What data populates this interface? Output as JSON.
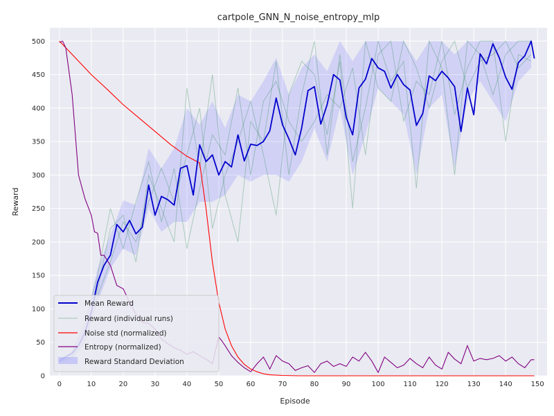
{
  "chart_data": {
    "type": "line",
    "title": "cartpole_GNN_N_noise_entropy_mlp",
    "xlabel": "Episode",
    "ylabel": "Reward",
    "xlim": [
      -3,
      153
    ],
    "ylim": [
      0,
      520
    ],
    "xticks": [
      0,
      10,
      20,
      30,
      40,
      50,
      60,
      70,
      80,
      90,
      100,
      110,
      120,
      130,
      140,
      150
    ],
    "yticks": [
      0,
      50,
      100,
      150,
      200,
      250,
      300,
      350,
      400,
      450,
      500
    ],
    "grid": true,
    "legend_position": "lower-left",
    "colors": {
      "mean": "#0000cc",
      "runs": "#2e8b57",
      "noise": "#ff0000",
      "entropy": "#800080",
      "std_band": "#7b7bff",
      "plot_bg": "#eaeaf2",
      "grid": "#ffffff"
    },
    "series": [
      {
        "name": "Mean Reward",
        "x": [
          0,
          2,
          4,
          6,
          8,
          10,
          12,
          14,
          16,
          18,
          20,
          22,
          24,
          26,
          28,
          30,
          32,
          34,
          36,
          38,
          40,
          42,
          44,
          46,
          48,
          50,
          52,
          54,
          56,
          58,
          60,
          62,
          64,
          66,
          68,
          70,
          72,
          74,
          76,
          78,
          80,
          82,
          84,
          86,
          88,
          90,
          92,
          94,
          96,
          98,
          100,
          102,
          104,
          106,
          108,
          110,
          112,
          114,
          116,
          118,
          120,
          122,
          124,
          126,
          128,
          130,
          132,
          134,
          136,
          138,
          140,
          142,
          144,
          146,
          148,
          149
        ],
        "values": [
          22,
          28,
          34,
          45,
          65,
          95,
          140,
          165,
          180,
          226,
          215,
          232,
          212,
          222,
          285,
          240,
          268,
          263,
          255,
          310,
          314,
          270,
          345,
          320,
          330,
          300,
          320,
          312,
          360,
          321,
          346,
          344,
          350,
          366,
          415,
          375,
          354,
          330,
          370,
          426,
          432,
          376,
          405,
          450,
          442,
          386,
          360,
          430,
          443,
          474,
          460,
          455,
          430,
          450,
          435,
          427,
          374,
          392,
          448,
          441,
          455,
          445,
          432,
          365,
          430,
          390,
          481,
          466,
          496,
          475,
          446,
          428,
          468,
          478,
          500,
          474
        ]
      },
      {
        "name": "Reward (individual runs)",
        "runs": [
          {
            "x": [
              0,
              4,
              8,
              12,
              16,
              20,
              24,
              28,
              32,
              36,
              40,
              44,
              48,
              52,
              56,
              60,
              64,
              68,
              72,
              76,
              80,
              84,
              88,
              92,
              96,
              100,
              104,
              108,
              112,
              116,
              120,
              124,
              128,
              132,
              136,
              140,
              144,
              148
            ],
            "values": [
              20,
              30,
              60,
              130,
              220,
              240,
              170,
              300,
              250,
              200,
              430,
              310,
              450,
              270,
              200,
              380,
              350,
              470,
              300,
              420,
              500,
              330,
              480,
              320,
              400,
              500,
              440,
              470,
              280,
              500,
              460,
              300,
              500,
              480,
              420,
              480,
              500,
              500
            ]
          },
          {
            "x": [
              0,
              4,
              8,
              12,
              16,
              20,
              24,
              28,
              32,
              36,
              40,
              44,
              48,
              52,
              56,
              60,
              64,
              68,
              72,
              76,
              80,
              84,
              88,
              92,
              96,
              100,
              104,
              108,
              112,
              116,
              120,
              124,
              128,
              132,
              136,
              140,
              144,
              148
            ],
            "values": [
              25,
              35,
              80,
              150,
              250,
              190,
              260,
              320,
              230,
              310,
              190,
              280,
              360,
              330,
              430,
              300,
              410,
              440,
              380,
              350,
              380,
              420,
              400,
              460,
              330,
              480,
              500,
              380,
              440,
              420,
              500,
              390,
              460,
              500,
              500,
              350,
              480,
              470
            ]
          },
          {
            "x": [
              0,
              4,
              8,
              12,
              16,
              20,
              24,
              28,
              32,
              36,
              40,
              44,
              48,
              52,
              56,
              60,
              64,
              68,
              72,
              76,
              80,
              84,
              88,
              92,
              96,
              100,
              104,
              108,
              112,
              116,
              120,
              124,
              128,
              132,
              136,
              140,
              144,
              148
            ],
            "values": [
              18,
              28,
              50,
              120,
              170,
              230,
              200,
              260,
              310,
              260,
              330,
              400,
              220,
              300,
              350,
              410,
              330,
              240,
              420,
              470,
              450,
              360,
              470,
              250,
              500,
              430,
              410,
              500,
              460,
              400,
              470,
              500,
              430,
              470,
              480,
              500,
              460,
              480
            ]
          }
        ]
      },
      {
        "name": "Noise std (normalized)",
        "x": [
          0,
          5,
          10,
          15,
          20,
          25,
          30,
          35,
          40,
          44,
          46,
          48,
          50,
          52,
          54,
          56,
          58,
          60,
          62,
          64,
          66,
          70,
          75,
          80,
          90,
          100,
          120,
          140,
          149
        ],
        "values": [
          500,
          475,
          450,
          428,
          405,
          385,
          365,
          345,
          328,
          318,
          250,
          170,
          110,
          70,
          45,
          28,
          17,
          10,
          6,
          3,
          1.5,
          0.5,
          0,
          0,
          0,
          0,
          0,
          0,
          0
        ]
      },
      {
        "name": "Entropy (normalized)",
        "x": [
          0,
          1,
          2,
          4,
          6,
          8,
          10,
          11,
          12,
          13,
          14,
          16,
          18,
          20,
          22,
          24,
          26,
          28,
          30,
          32,
          34,
          36,
          38,
          40,
          42,
          44,
          46,
          48,
          50,
          51,
          52,
          54,
          56,
          58,
          60,
          62,
          64,
          66,
          68,
          70,
          72,
          74,
          76,
          78,
          80,
          82,
          84,
          86,
          88,
          90,
          92,
          94,
          96,
          98,
          100,
          102,
          104,
          106,
          108,
          110,
          112,
          114,
          116,
          118,
          120,
          122,
          124,
          126,
          128,
          130,
          132,
          134,
          136,
          138,
          140,
          142,
          144,
          146,
          148,
          149
        ],
        "values": [
          498,
          500,
          490,
          420,
          300,
          265,
          240,
          215,
          213,
          180,
          180,
          165,
          135,
          130,
          110,
          92,
          80,
          78,
          70,
          55,
          48,
          42,
          38,
          32,
          36,
          30,
          25,
          18,
          58,
          52,
          45,
          30,
          20,
          12,
          6,
          18,
          28,
          10,
          30,
          22,
          18,
          8,
          12,
          15,
          5,
          18,
          22,
          14,
          18,
          14,
          28,
          22,
          35,
          22,
          5,
          28,
          20,
          12,
          16,
          26,
          18,
          12,
          28,
          16,
          10,
          35,
          25,
          18,
          45,
          22,
          26,
          24,
          26,
          30,
          22,
          28,
          18,
          12,
          24,
          24
        ]
      },
      {
        "name": "Reward Standard Deviation",
        "x": [
          0,
          4,
          8,
          12,
          16,
          20,
          24,
          28,
          32,
          36,
          40,
          44,
          48,
          52,
          56,
          60,
          64,
          68,
          72,
          76,
          80,
          84,
          88,
          92,
          96,
          100,
          104,
          108,
          112,
          116,
          120,
          124,
          128,
          132,
          136,
          140,
          144,
          148
        ],
        "upper": [
          24,
          36,
          78,
          160,
          210,
          262,
          255,
          340,
          310,
          340,
          400,
          375,
          410,
          370,
          420,
          410,
          440,
          475,
          420,
          460,
          480,
          455,
          500,
          470,
          500,
          500,
          500,
          500,
          470,
          500,
          500,
          480,
          500,
          500,
          500,
          500,
          500,
          500
        ],
        "lower": [
          20,
          25,
          50,
          110,
          160,
          190,
          180,
          250,
          215,
          230,
          230,
          260,
          260,
          270,
          300,
          290,
          300,
          300,
          290,
          320,
          370,
          320,
          400,
          300,
          360,
          430,
          410,
          390,
          300,
          400,
          420,
          310,
          410,
          440,
          410,
          380,
          440,
          460
        ]
      }
    ]
  }
}
